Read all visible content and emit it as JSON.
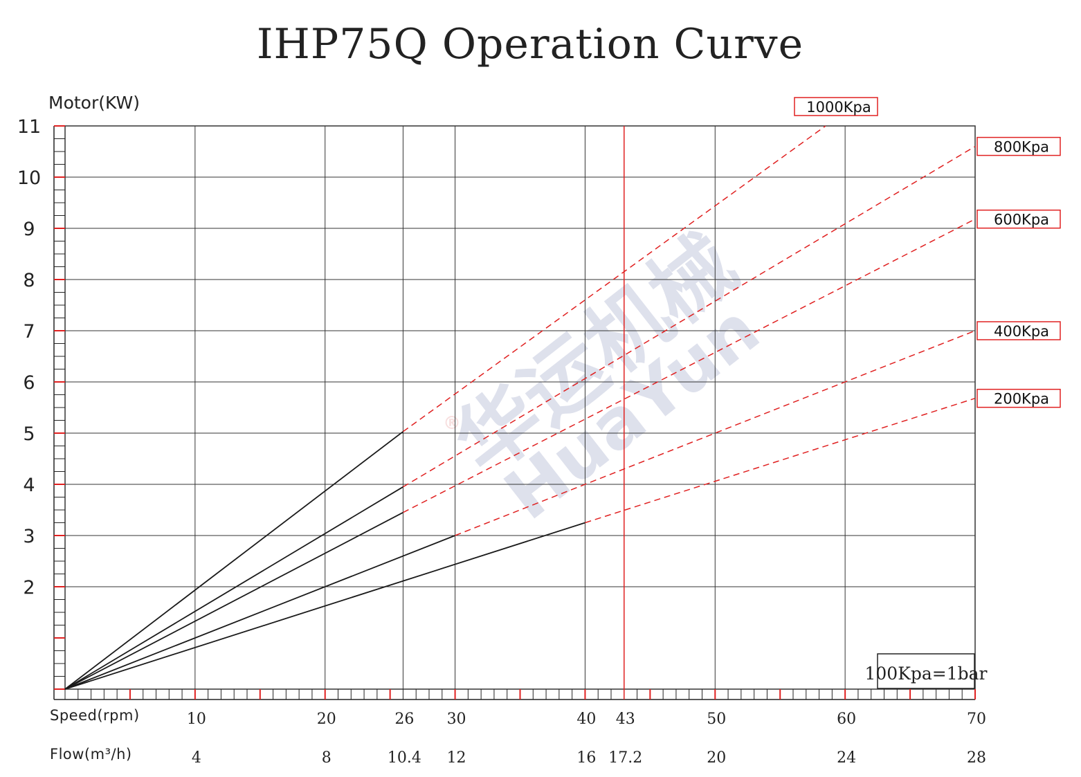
{
  "chart_data": {
    "type": "line",
    "title": "IHP75Q Operation Curve",
    "ylabel": "Motor(KW)",
    "xlabel": "Speed(rpm)",
    "secondary_x_label": "Flow(m³/h)",
    "xlim": [
      0,
      70
    ],
    "ylim": [
      0,
      11
    ],
    "x_ticks": [
      {
        "speed": 10,
        "speed_label": "10",
        "flow_label": "4"
      },
      {
        "speed": 20,
        "speed_label": "20",
        "flow_label": "8"
      },
      {
        "speed": 26,
        "speed_label": "26",
        "flow_label": "10.4"
      },
      {
        "speed": 30,
        "speed_label": "30",
        "flow_label": "12"
      },
      {
        "speed": 40,
        "speed_label": "40",
        "flow_label": "16"
      },
      {
        "speed": 43,
        "speed_label": "43",
        "flow_label": "17.2"
      },
      {
        "speed": 50,
        "speed_label": "50",
        "flow_label": "20"
      },
      {
        "speed": 60,
        "speed_label": "60",
        "flow_label": "24"
      },
      {
        "speed": 70,
        "speed_label": "70",
        "flow_label": "28"
      }
    ],
    "y_ticks": [
      2,
      3,
      4,
      5,
      6,
      7,
      8,
      9,
      10,
      11
    ],
    "reference_line": {
      "speed": 43,
      "color": "#e02020"
    },
    "series": [
      {
        "name": "1000Kpa",
        "solid": [
          [
            0,
            0
          ],
          [
            26,
            5.03
          ]
        ],
        "dashed": [
          [
            26,
            5.03
          ],
          [
            58.5,
            11
          ]
        ]
      },
      {
        "name": "800Kpa",
        "solid": [
          [
            0,
            0
          ],
          [
            26,
            3.95
          ]
        ],
        "dashed": [
          [
            26,
            3.95
          ],
          [
            70,
            10.6
          ]
        ]
      },
      {
        "name": "600Kpa",
        "solid": [
          [
            0,
            0
          ],
          [
            26,
            3.45
          ]
        ],
        "dashed": [
          [
            26,
            3.45
          ],
          [
            70,
            9.18
          ]
        ]
      },
      {
        "name": "400Kpa",
        "solid": [
          [
            0,
            0
          ],
          [
            30,
            3.0
          ]
        ],
        "dashed": [
          [
            30,
            3.0
          ],
          [
            70,
            7.0
          ]
        ]
      },
      {
        "name": "200Kpa",
        "solid": [
          [
            0,
            0
          ],
          [
            40,
            3.25
          ]
        ],
        "dashed": [
          [
            40,
            3.25
          ],
          [
            70,
            5.68
          ]
        ]
      }
    ],
    "note": "100Kpa=1bar",
    "grid": true,
    "colors": {
      "solid": "#1a1a1a",
      "dashed": "#e02020",
      "grid": "#333333",
      "accent": "#e02020"
    }
  },
  "watermark": {
    "cn": "华运机械",
    "en": "HuaYun",
    "mark": "®"
  }
}
